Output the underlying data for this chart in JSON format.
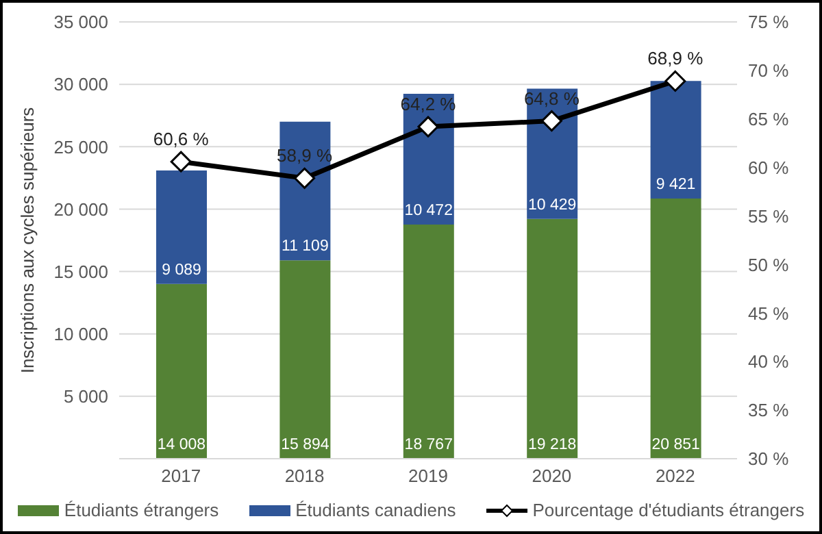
{
  "chart_data": {
    "type": "bar",
    "ylabel": "Inscriptions aux cycles supérieurs",
    "categories": [
      "2017",
      "2018",
      "2019",
      "2020",
      "2022"
    ],
    "stacked": true,
    "grid": "y",
    "legend": "bottom",
    "ylim": [
      0,
      35000
    ],
    "yticks": [
      {
        "value": 0,
        "label": null
      },
      {
        "value": 5000,
        "label": "5 000"
      },
      {
        "value": 10000,
        "label": "10 000"
      },
      {
        "value": 15000,
        "label": "15 000"
      },
      {
        "value": 20000,
        "label": "20 000"
      },
      {
        "value": 25000,
        "label": "25 000"
      },
      {
        "value": 30000,
        "label": "30 000"
      },
      {
        "value": 35000,
        "label": "35 000"
      }
    ],
    "y2lim": [
      30,
      75
    ],
    "y2ticks": [
      {
        "value": 30,
        "label": "30 %"
      },
      {
        "value": 35,
        "label": "35 %"
      },
      {
        "value": 40,
        "label": "40 %"
      },
      {
        "value": 45,
        "label": "45 %"
      },
      {
        "value": 50,
        "label": "50 %"
      },
      {
        "value": 55,
        "label": "55 %"
      },
      {
        "value": 60,
        "label": "60 %"
      },
      {
        "value": 65,
        "label": "65 %"
      },
      {
        "value": 70,
        "label": "70 %"
      },
      {
        "value": 75,
        "label": "75 %"
      }
    ],
    "series": [
      {
        "name": "Étudiants étrangers",
        "color": "#548235",
        "values": [
          14008,
          15894,
          18767,
          19218,
          20851
        ],
        "value_labels": [
          "14 008",
          "15 894",
          "18 767",
          "19 218",
          "20 851"
        ]
      },
      {
        "name": "Étudiants canadiens",
        "color": "#2f5597",
        "values": [
          9089,
          11109,
          10472,
          10429,
          9421
        ],
        "value_labels": [
          "9 089",
          "11 109",
          "10 472",
          "10 429",
          "9 421"
        ]
      },
      {
        "name": "Pourcentage d'étudiants étrangers",
        "type": "line",
        "axis": "y2",
        "color": "#000000",
        "marker": "diamond",
        "values": [
          60.6,
          58.9,
          64.2,
          64.8,
          68.9
        ],
        "value_labels": [
          "60,6 %",
          "58,9 %",
          "64,2 %",
          "64,8 %",
          "68,9 %"
        ]
      }
    ]
  }
}
